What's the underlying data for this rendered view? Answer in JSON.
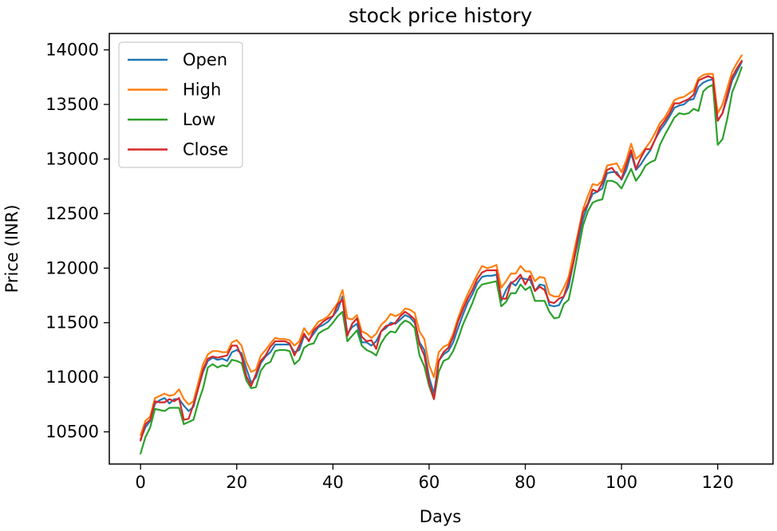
{
  "chart_data": {
    "type": "line",
    "title": "stock price history",
    "xlabel": "Days",
    "ylabel": "Price (INR)",
    "xlim": [
      -6.5,
      131.5
    ],
    "ylim": [
      10205,
      14150
    ],
    "xticks": [
      0,
      20,
      40,
      60,
      80,
      100,
      120
    ],
    "yticks": [
      10500,
      11000,
      11500,
      12000,
      12500,
      13000,
      13500,
      14000
    ],
    "legend_position": "upper-left",
    "series": [
      {
        "name": "Open",
        "color": "#1f77b4",
        "values": [
          10430,
          10540,
          10600,
          10760,
          10790,
          10810,
          10760,
          10800,
          10800,
          10740,
          10690,
          10730,
          10900,
          11050,
          11150,
          11180,
          11160,
          11170,
          11150,
          11230,
          11250,
          11220,
          11080,
          10950,
          11000,
          11130,
          11190,
          11230,
          11300,
          11300,
          11300,
          11300,
          11230,
          11250,
          11380,
          11340,
          11400,
          11460,
          11480,
          11510,
          11560,
          11620,
          11740,
          11400,
          11460,
          11490,
          11320,
          11320,
          11290,
          11330,
          11420,
          11450,
          11500,
          11490,
          11530,
          11570,
          11550,
          11500,
          11320,
          11250,
          11000,
          10850,
          11150,
          11210,
          11240,
          11320,
          11450,
          11570,
          11680,
          11760,
          11860,
          11920,
          11930,
          11930,
          11940,
          11700,
          11800,
          11870,
          11840,
          11910,
          11900,
          11890,
          11790,
          11850,
          11840,
          11660,
          11650,
          11660,
          11740,
          11830,
          12050,
          12250,
          12450,
          12580,
          12680,
          12700,
          12730,
          12870,
          12880,
          12880,
          12810,
          12900,
          13050,
          12900,
          12950,
          13020,
          13080,
          13180,
          13260,
          13320,
          13390,
          13470,
          13490,
          13500,
          13540,
          13550,
          13660,
          13700,
          13720,
          13730,
          13350,
          13420,
          13560,
          13720,
          13800,
          13890
        ]
      },
      {
        "name": "High",
        "color": "#ff7f0e",
        "values": [
          10470,
          10600,
          10640,
          10810,
          10830,
          10850,
          10830,
          10840,
          10890,
          10800,
          10750,
          10780,
          10950,
          11120,
          11210,
          11240,
          11240,
          11230,
          11230,
          11320,
          11340,
          11290,
          11140,
          11050,
          11070,
          11200,
          11250,
          11310,
          11360,
          11350,
          11350,
          11340,
          11290,
          11330,
          11450,
          11390,
          11450,
          11510,
          11530,
          11560,
          11620,
          11680,
          11800,
          11540,
          11530,
          11570,
          11420,
          11400,
          11360,
          11400,
          11480,
          11520,
          11580,
          11560,
          11580,
          11630,
          11620,
          11590,
          11420,
          11350,
          11110,
          11000,
          11230,
          11280,
          11300,
          11400,
          11540,
          11660,
          11760,
          11850,
          11940,
          12020,
          12000,
          12010,
          12030,
          11820,
          11880,
          11950,
          11950,
          12020,
          11970,
          11970,
          11880,
          11920,
          11910,
          11760,
          11740,
          11740,
          11820,
          11920,
          12130,
          12330,
          12540,
          12660,
          12770,
          12760,
          12800,
          12940,
          12950,
          12960,
          12880,
          12990,
          13140,
          13000,
          13040,
          13100,
          13160,
          13240,
          13330,
          13380,
          13460,
          13540,
          13560,
          13570,
          13600,
          13630,
          13740,
          13770,
          13780,
          13780,
          13420,
          13500,
          13650,
          13800,
          13880,
          13950
        ]
      },
      {
        "name": "Low",
        "color": "#2ca02c",
        "values": [
          10300,
          10450,
          10540,
          10710,
          10700,
          10690,
          10720,
          10720,
          10720,
          10570,
          10590,
          10610,
          10770,
          10900,
          11090,
          11120,
          11090,
          11110,
          11100,
          11160,
          11150,
          11130,
          10970,
          10900,
          10910,
          11060,
          11120,
          11140,
          11240,
          11250,
          11250,
          11240,
          11120,
          11160,
          11270,
          11300,
          11310,
          11400,
          11430,
          11450,
          11500,
          11560,
          11600,
          11330,
          11380,
          11430,
          11290,
          11250,
          11230,
          11200,
          11310,
          11380,
          11420,
          11410,
          11480,
          11520,
          11500,
          11450,
          11200,
          11100,
          10920,
          10800,
          11050,
          11150,
          11170,
          11240,
          11350,
          11480,
          11580,
          11680,
          11800,
          11850,
          11860,
          11870,
          11880,
          11650,
          11690,
          11770,
          11770,
          11850,
          11800,
          11830,
          11700,
          11700,
          11700,
          11600,
          11540,
          11550,
          11670,
          11710,
          11920,
          12160,
          12390,
          12520,
          12600,
          12620,
          12630,
          12800,
          12800,
          12780,
          12730,
          12820,
          12910,
          12800,
          12860,
          12940,
          12970,
          12990,
          13130,
          13220,
          13300,
          13380,
          13420,
          13410,
          13420,
          13460,
          13440,
          13620,
          13660,
          13680,
          13130,
          13180,
          13370,
          13610,
          13720,
          13840
        ]
      },
      {
        "name": "Close",
        "color": "#d62728",
        "values": [
          10420,
          10570,
          10610,
          10780,
          10770,
          10770,
          10800,
          10780,
          10810,
          10610,
          10620,
          10750,
          10900,
          11070,
          11170,
          11190,
          11180,
          11190,
          11200,
          11290,
          11290,
          11190,
          11010,
          10920,
          11030,
          11150,
          11200,
          11280,
          11330,
          11330,
          11330,
          11310,
          11200,
          11290,
          11400,
          11330,
          11430,
          11470,
          11510,
          11540,
          11560,
          11670,
          11710,
          11380,
          11490,
          11540,
          11370,
          11330,
          11340,
          11260,
          11420,
          11470,
          11480,
          11500,
          11560,
          11600,
          11570,
          11530,
          11300,
          11200,
          10950,
          10800,
          11150,
          11230,
          11270,
          11370,
          11510,
          11620,
          11720,
          11800,
          11900,
          11960,
          11980,
          11980,
          11980,
          11720,
          11720,
          11860,
          11890,
          11940,
          11850,
          11930,
          11790,
          11830,
          11800,
          11690,
          11680,
          11720,
          11740,
          11880,
          12050,
          12300,
          12510,
          12590,
          12720,
          12700,
          12780,
          12900,
          12920,
          12860,
          12820,
          12950,
          13080,
          12910,
          13010,
          13090,
          13090,
          13180,
          13290,
          13350,
          13420,
          13510,
          13510,
          13530,
          13550,
          13590,
          13720,
          13740,
          13760,
          13740,
          13350,
          13420,
          13590,
          13750,
          13830,
          13900
        ]
      }
    ]
  }
}
